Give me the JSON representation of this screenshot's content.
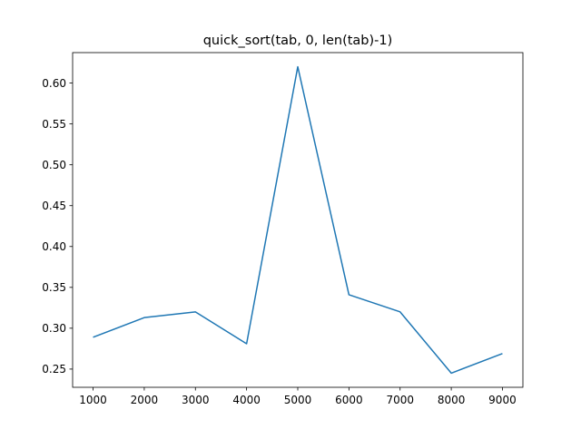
{
  "colors": {
    "line": "#1f77b4",
    "axes": "#000000",
    "background": "#ffffff"
  },
  "chart_data": {
    "type": "line",
    "title": "quick_sort(tab, 0, len(tab)-1)",
    "xlabel": "",
    "ylabel": "",
    "grid": false,
    "xlim": [
      600,
      9400
    ],
    "ylim": [
      0.2277,
      0.6373
    ],
    "x_ticks": [
      1000,
      2000,
      3000,
      4000,
      5000,
      6000,
      7000,
      8000,
      9000
    ],
    "x_tick_labels": [
      "1000",
      "2000",
      "3000",
      "4000",
      "5000",
      "6000",
      "7000",
      "8000",
      "9000"
    ],
    "y_ticks": [
      0.25,
      0.3,
      0.35,
      0.4,
      0.45,
      0.5,
      0.55,
      0.6
    ],
    "y_tick_labels": [
      "0.25",
      "0.30",
      "0.35",
      "0.40",
      "0.45",
      "0.50",
      "0.55",
      "0.60"
    ],
    "series": [
      {
        "name": "quick_sort",
        "x": [
          1000,
          2000,
          3000,
          4000,
          5000,
          6000,
          7000,
          8000,
          9000
        ],
        "values": [
          0.289,
          0.313,
          0.32,
          0.281,
          0.62,
          0.341,
          0.32,
          0.245,
          0.269
        ]
      }
    ]
  }
}
